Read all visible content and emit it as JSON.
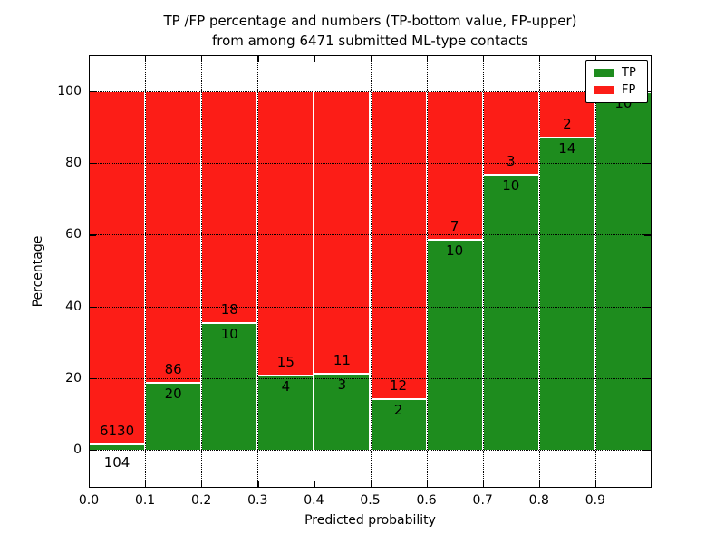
{
  "figure": {
    "title_line1": "TP /FP percentage and numbers (TP-bottom value, FP-upper)",
    "title_line2": "from among 6471 submitted ML-type contacts"
  },
  "axes": {
    "xlabel": "Predicted probability",
    "ylabel": "Percentage",
    "x_tick_labels": [
      "0.0",
      "0.1",
      "0.2",
      "0.3",
      "0.4",
      "0.5",
      "0.6",
      "0.7",
      "0.8",
      "0.9"
    ],
    "y_tick_labels": [
      "0",
      "20",
      "40",
      "60",
      "80",
      "100"
    ]
  },
  "legend": {
    "entries": [
      {
        "label": "TP",
        "color": "#1E8C1E"
      },
      {
        "label": "FP",
        "color": "#FC1D17"
      }
    ]
  },
  "colors": {
    "tp": "#1E8C1E",
    "fp": "#FC1D17",
    "grid": "#000000",
    "frame": "#000000",
    "background": "#FFFFFF",
    "text": "#000000"
  },
  "chart_data": {
    "type": "bar",
    "stacking": "percent_stacked",
    "title": "TP /FP percentage and numbers (TP-bottom value, FP-upper) from among 6471 submitted ML-type contacts",
    "xlabel": "Predicted probability",
    "ylabel": "Percentage",
    "total_contacts": 6471,
    "grid": "dotted",
    "legend_position": "upper right",
    "bin_edges": [
      0.0,
      0.1,
      0.2,
      0.3,
      0.4,
      0.5,
      0.6,
      0.7,
      0.8,
      0.9,
      1.0
    ],
    "categories": [
      "0.0-0.1",
      "0.1-0.2",
      "0.2-0.3",
      "0.3-0.4",
      "0.4-0.5",
      "0.5-0.6",
      "0.6-0.7",
      "0.7-0.8",
      "0.8-0.9",
      "0.9-1.0"
    ],
    "series": [
      {
        "name": "TP",
        "color": "#1E8C1E",
        "counts": [
          104,
          20,
          10,
          4,
          3,
          2,
          10,
          10,
          14,
          10
        ]
      },
      {
        "name": "FP",
        "color": "#FC1D17",
        "counts": [
          6130,
          86,
          18,
          15,
          11,
          12,
          7,
          3,
          2,
          0
        ]
      }
    ],
    "tp_percent_of_bin": [
      1.67,
      18.87,
      35.71,
      21.05,
      21.43,
      14.29,
      58.82,
      76.92,
      87.5,
      100.0
    ],
    "fp_label_shown": [
      true,
      true,
      true,
      true,
      true,
      true,
      true,
      true,
      true,
      false
    ],
    "x_ticks": [
      0.0,
      0.1,
      0.2,
      0.3,
      0.4,
      0.5,
      0.6,
      0.7,
      0.8,
      0.9
    ],
    "y_ticks": [
      0,
      20,
      40,
      60,
      80,
      100
    ],
    "xlim": [
      0.0,
      1.0
    ],
    "ylim": [
      -10.6,
      110.1
    ]
  }
}
